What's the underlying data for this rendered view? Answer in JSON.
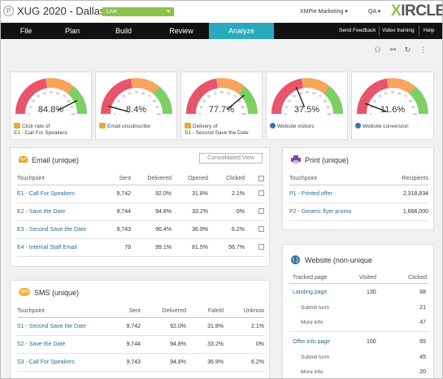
{
  "header": {
    "logo_letter": "P",
    "title": "XUG 2020 - Dallas",
    "status": "Live",
    "account": "XMPie Marketing ▾",
    "env": "QA ▾",
    "brand_x": "X",
    "brand_rest": "IRCLE"
  },
  "nav": {
    "tabs": [
      "File",
      "Plan",
      "Build",
      "Review",
      "Analyze"
    ],
    "active": "Analyze",
    "links": [
      "Send Feedback",
      "Video training",
      "Help"
    ]
  },
  "toolbar": {
    "icons": [
      "users-icon",
      "link-icon",
      "refresh-icon",
      "more-icon"
    ]
  },
  "gauges": [
    {
      "value": "84.8%",
      "fraction": 0.848,
      "icon": "mail-icon",
      "label1": "Click rate of",
      "label2": "E1 - Call For Speakers"
    },
    {
      "value": "8.4%",
      "fraction": 0.084,
      "icon": "mail-icon",
      "label1": "Email unsubscribe",
      "label2": ""
    },
    {
      "value": "77.7%",
      "fraction": 0.777,
      "icon": "mail-icon",
      "label1": "Delivery of",
      "label2": "S1 - Second Save the Date"
    },
    {
      "value": "37.5%",
      "fraction": 0.375,
      "icon": "globe-icon",
      "label1": "Website visitors",
      "label2": ""
    },
    {
      "value": "11.6%",
      "fraction": 0.116,
      "icon": "globe-icon",
      "label1": "Website conversion",
      "label2": ""
    }
  ],
  "gauge_ticks": [
    "0",
    "10",
    "20",
    "30",
    "40",
    "50",
    "60",
    "70",
    "80",
    "90",
    "100"
  ],
  "email": {
    "title": "Email (unique)",
    "consolidated": "Consolidated View",
    "headers": [
      "Touchpoint",
      "Sent",
      "Delivered",
      "Opened",
      "Clicked"
    ],
    "rows": [
      {
        "name": "E1 - Call For Speakers",
        "sent": "9,742",
        "delivered": "92.0%",
        "opened": "31.8%",
        "clicked": "2.1%"
      },
      {
        "name": "E2 - Save the Date",
        "sent": "9,744",
        "delivered": "94.8%",
        "opened": "33.2%",
        "clicked": "0%"
      },
      {
        "name": "E3 - Second Save the Date",
        "sent": "9,743",
        "delivered": "96.4%",
        "opened": "36.9%",
        "clicked": "6.2%"
      },
      {
        "name": "E4 - Internal Staff Email",
        "sent": "79",
        "delivered": "99.1%",
        "opened": "81.5%",
        "clicked": "56.7%"
      }
    ]
  },
  "sms": {
    "title": "SMS (unique)",
    "badge": "SMS",
    "headers": [
      "Touchpoint",
      "Sent",
      "Delivered",
      "Faleld",
      "Unknow"
    ],
    "rows": [
      {
        "name": "S1 - Second Save the Date",
        "sent": "9,742",
        "delivered": "92.0%",
        "failed": "31.8%",
        "unknown": "2.1%"
      },
      {
        "name": "S2 - Save the Date",
        "sent": "9,744",
        "delivered": "94.8%",
        "failed": "33.2%",
        "unknown": "0%"
      },
      {
        "name": "S3 - Call For Speakers",
        "sent": "9,743",
        "delivered": "94.8%",
        "failed": "36.9%",
        "unknown": "6.2%"
      }
    ]
  },
  "print": {
    "title": "Print (unique)",
    "headers": [
      "Touchpoint",
      "Recipients"
    ],
    "rows": [
      {
        "name": "P1 - Printed offer",
        "recipients": "2,318,834"
      },
      {
        "name": "P2 - Generic flyer promo",
        "recipients": "1,666,000"
      }
    ]
  },
  "website": {
    "title": "Website (non-unique",
    "headers": [
      "Tracked page",
      "Visited",
      "Clicked"
    ],
    "pages": [
      {
        "name": "Landing page",
        "visited": "130",
        "clicked": "68",
        "subs": [
          {
            "name": "Submit form",
            "clicked": "21"
          },
          {
            "name": "More info",
            "clicked": "47"
          }
        ]
      },
      {
        "name": "Offer info page",
        "visited": "100",
        "clicked": "65",
        "subs": [
          {
            "name": "Submit form",
            "clicked": "45"
          },
          {
            "name": "More info",
            "clicked": "20"
          }
        ]
      }
    ]
  },
  "colors": {
    "nav_bg": "#111111",
    "active_tab": "#29a9be",
    "live": "#8bc34a",
    "link": "#2a6f97",
    "gauge_red": "#e8546a",
    "gauge_orange": "#f5a55c",
    "gauge_green": "#7ccf63"
  }
}
